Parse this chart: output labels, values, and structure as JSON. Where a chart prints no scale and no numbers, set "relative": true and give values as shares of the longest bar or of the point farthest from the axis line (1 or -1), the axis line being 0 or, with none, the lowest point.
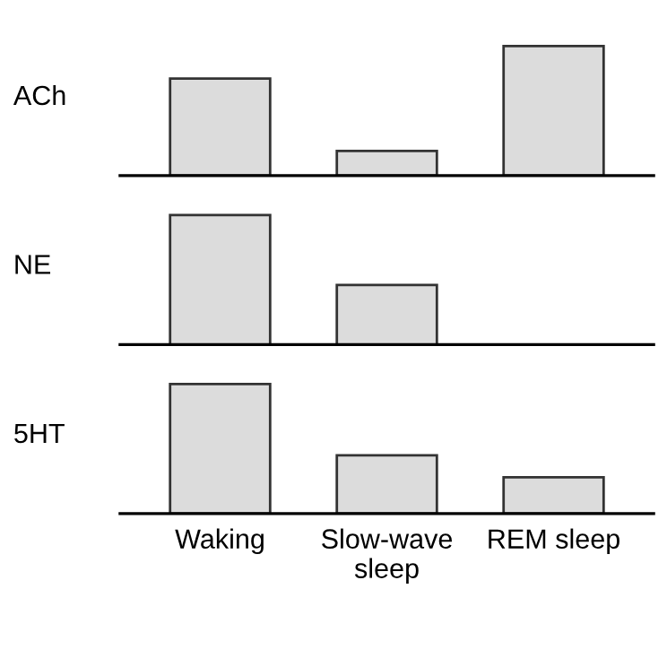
{
  "chart_data": [
    {
      "type": "bar",
      "ylabel": "ACh",
      "categories": [
        null,
        null,
        null
      ],
      "relative": true,
      "tick_labels": false,
      "series": [
        {
          "color": "#dcdcdc",
          "values": [
            0.75,
            0.19,
            1
          ]
        }
      ]
    },
    {
      "type": "bar",
      "ylabel": "NE",
      "categories": [
        null,
        null,
        null
      ],
      "relative": true,
      "tick_labels": false,
      "series": [
        {
          "color": "#dcdcdc",
          "values": [
            1,
            0.46,
            null
          ]
        }
      ]
    },
    {
      "type": "bar",
      "ylabel": "5HT",
      "categories": [
        "Waking",
        "Slow-wave\nsleep",
        "REM sleep"
      ],
      "relative": true,
      "tick_labels": "x",
      "series": [
        {
          "color": "#dcdcdc",
          "values": [
            1,
            0.45,
            0.28
          ]
        }
      ]
    }
  ]
}
